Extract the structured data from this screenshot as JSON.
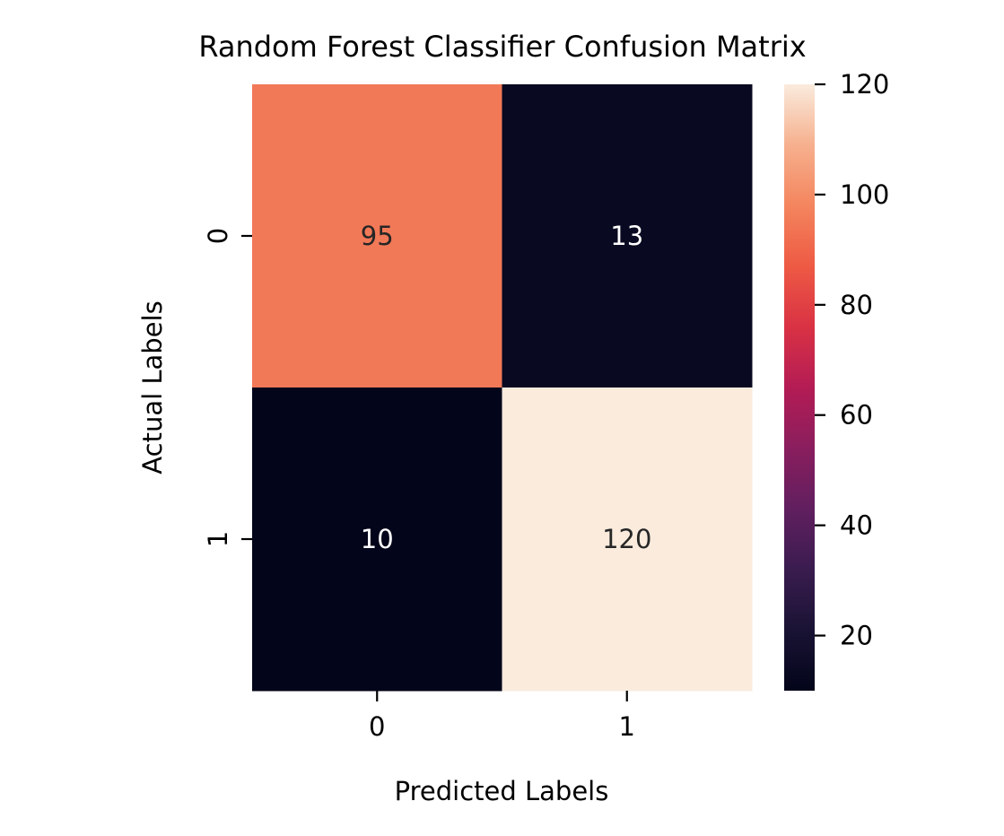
{
  "chart_data": {
    "type": "heatmap",
    "title": "Random Forest Classifier Confusion Matrix",
    "xlabel": "Predicted Labels",
    "ylabel": "Actual Labels",
    "x_categories": [
      "0",
      "1"
    ],
    "y_categories": [
      "0",
      "1"
    ],
    "values": [
      [
        95,
        13
      ],
      [
        10,
        120
      ]
    ],
    "colorbar": {
      "min": 10,
      "max": 120,
      "ticks": [
        20,
        40,
        60,
        80,
        100,
        120
      ],
      "tick_labels": [
        "20",
        "40",
        "60",
        "80",
        "100",
        "120"
      ],
      "colormap": "rocket"
    },
    "cell_colors": {
      "low_text": "#ffffff",
      "high_text": "#262626"
    },
    "grid": false,
    "legend": "colorbar-right"
  }
}
